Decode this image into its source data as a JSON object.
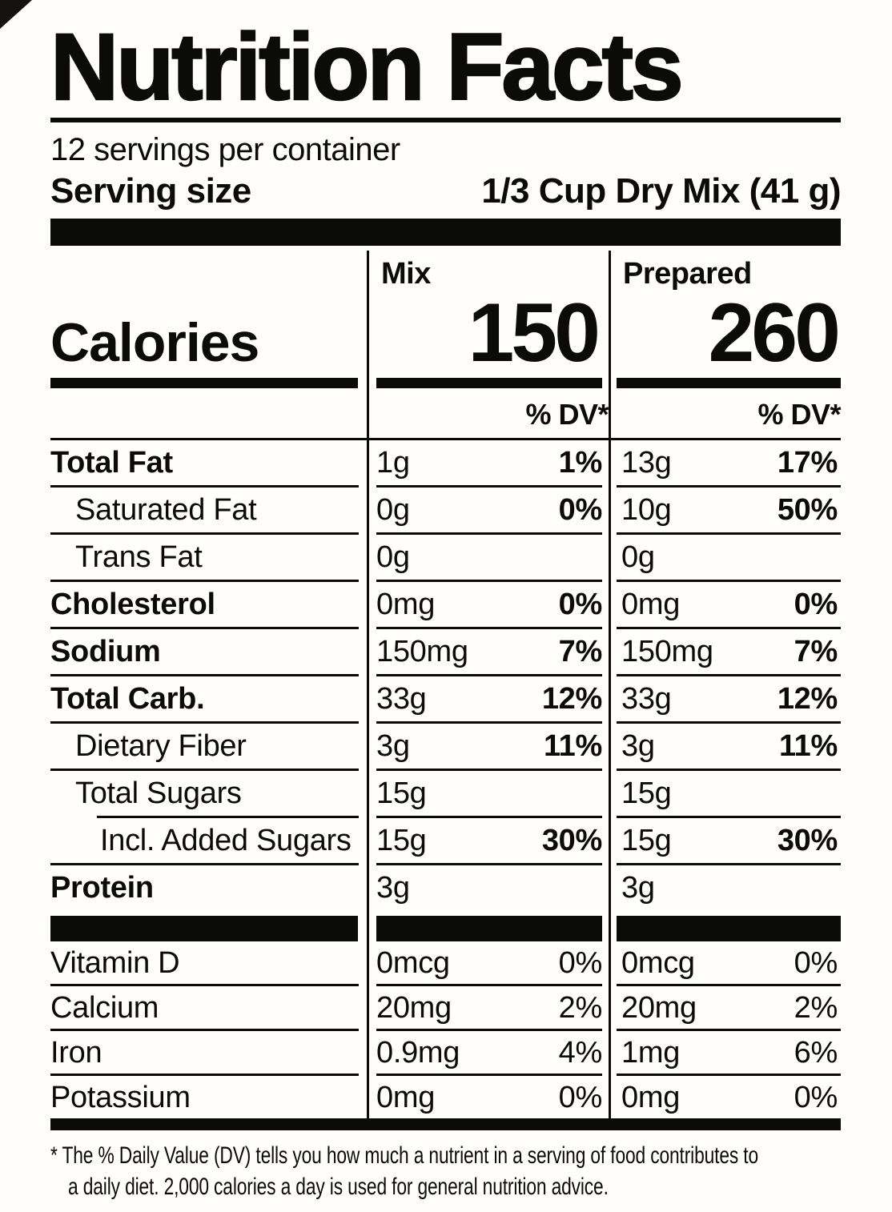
{
  "header": {
    "title": "Nutrition Facts",
    "servings_per_container": "12 servings per container",
    "serving_size_label": "Serving size",
    "serving_size_value": "1/3 Cup Dry Mix (41 g)"
  },
  "columns": {
    "mix": "Mix",
    "prepared": "Prepared"
  },
  "calories": {
    "label": "Calories",
    "mix": "150",
    "prepared": "260"
  },
  "dv_header": "% DV*",
  "nutrients": [
    {
      "label": "Total Fat",
      "mix_amt": "1g",
      "mix_dv": "1%",
      "prep_amt": "13g",
      "prep_dv": "17%"
    },
    {
      "label": "Saturated Fat",
      "mix_amt": "0g",
      "mix_dv": "0%",
      "prep_amt": "10g",
      "prep_dv": "50%"
    },
    {
      "label": "Trans Fat",
      "mix_amt": "0g",
      "mix_dv": "",
      "prep_amt": "0g",
      "prep_dv": ""
    },
    {
      "label": "Cholesterol",
      "mix_amt": "0mg",
      "mix_dv": "0%",
      "prep_amt": "0mg",
      "prep_dv": "0%"
    },
    {
      "label": "Sodium",
      "mix_amt": "150mg",
      "mix_dv": "7%",
      "prep_amt": "150mg",
      "prep_dv": "7%"
    },
    {
      "label": "Total Carb.",
      "mix_amt": "33g",
      "mix_dv": "12%",
      "prep_amt": "33g",
      "prep_dv": "12%"
    },
    {
      "label": "Dietary Fiber",
      "mix_amt": "3g",
      "mix_dv": "11%",
      "prep_amt": "3g",
      "prep_dv": "11%"
    },
    {
      "label": "Total Sugars",
      "mix_amt": "15g",
      "mix_dv": "",
      "prep_amt": "15g",
      "prep_dv": ""
    },
    {
      "label": "Incl. Added Sugars",
      "mix_amt": "15g",
      "mix_dv": "30%",
      "prep_amt": "15g",
      "prep_dv": "30%"
    },
    {
      "label": "Protein",
      "mix_amt": "3g",
      "mix_dv": "",
      "prep_amt": "3g",
      "prep_dv": ""
    }
  ],
  "vitamins": [
    {
      "label": "Vitamin D",
      "mix_amt": "0mcg",
      "mix_dv": "0%",
      "prep_amt": "0mcg",
      "prep_dv": "0%"
    },
    {
      "label": "Calcium",
      "mix_amt": "20mg",
      "mix_dv": "2%",
      "prep_amt": "20mg",
      "prep_dv": "2%"
    },
    {
      "label": "Iron",
      "mix_amt": "0.9mg",
      "mix_dv": "4%",
      "prep_amt": "1mg",
      "prep_dv": "6%"
    },
    {
      "label": "Potassium",
      "mix_amt": "0mg",
      "mix_dv": "0%",
      "prep_amt": "0mg",
      "prep_dv": "0%"
    }
  ],
  "footnote": {
    "line1": "* The % Daily Value (DV) tells you how much a nutrient in a serving of food contributes to",
    "line2": "a daily diet. 2,000 calories a day is used for general nutrition advice."
  }
}
